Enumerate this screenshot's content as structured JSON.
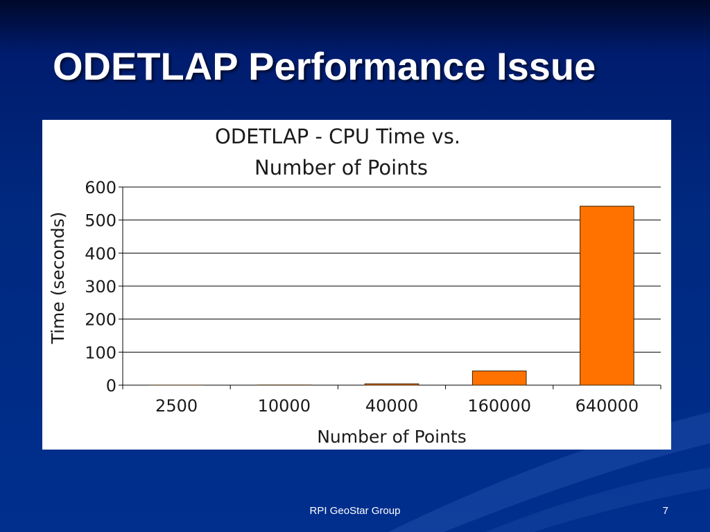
{
  "slide": {
    "title": "ODETLAP Performance Issue",
    "footer": "RPI GeoStar Group",
    "page_number": "7"
  },
  "colors": {
    "background": "#002b85",
    "bar_fill": "#ff7200",
    "bar_stroke": "#3a2200",
    "gridline": "#000000"
  },
  "chart_data": {
    "type": "bar",
    "title_lines": [
      "ODETLAP - CPU Time vs.",
      "Number of Points"
    ],
    "xlabel": "Number of Points",
    "ylabel": "Time (seconds)",
    "categories": [
      "2500",
      "10000",
      "40000",
      "160000",
      "640000"
    ],
    "values": [
      0.2,
      0.5,
      4,
      43,
      542
    ],
    "ylim": [
      0,
      600
    ],
    "yticks": [
      0,
      100,
      200,
      300,
      400,
      500,
      600
    ],
    "grid": true,
    "legend": "none"
  }
}
